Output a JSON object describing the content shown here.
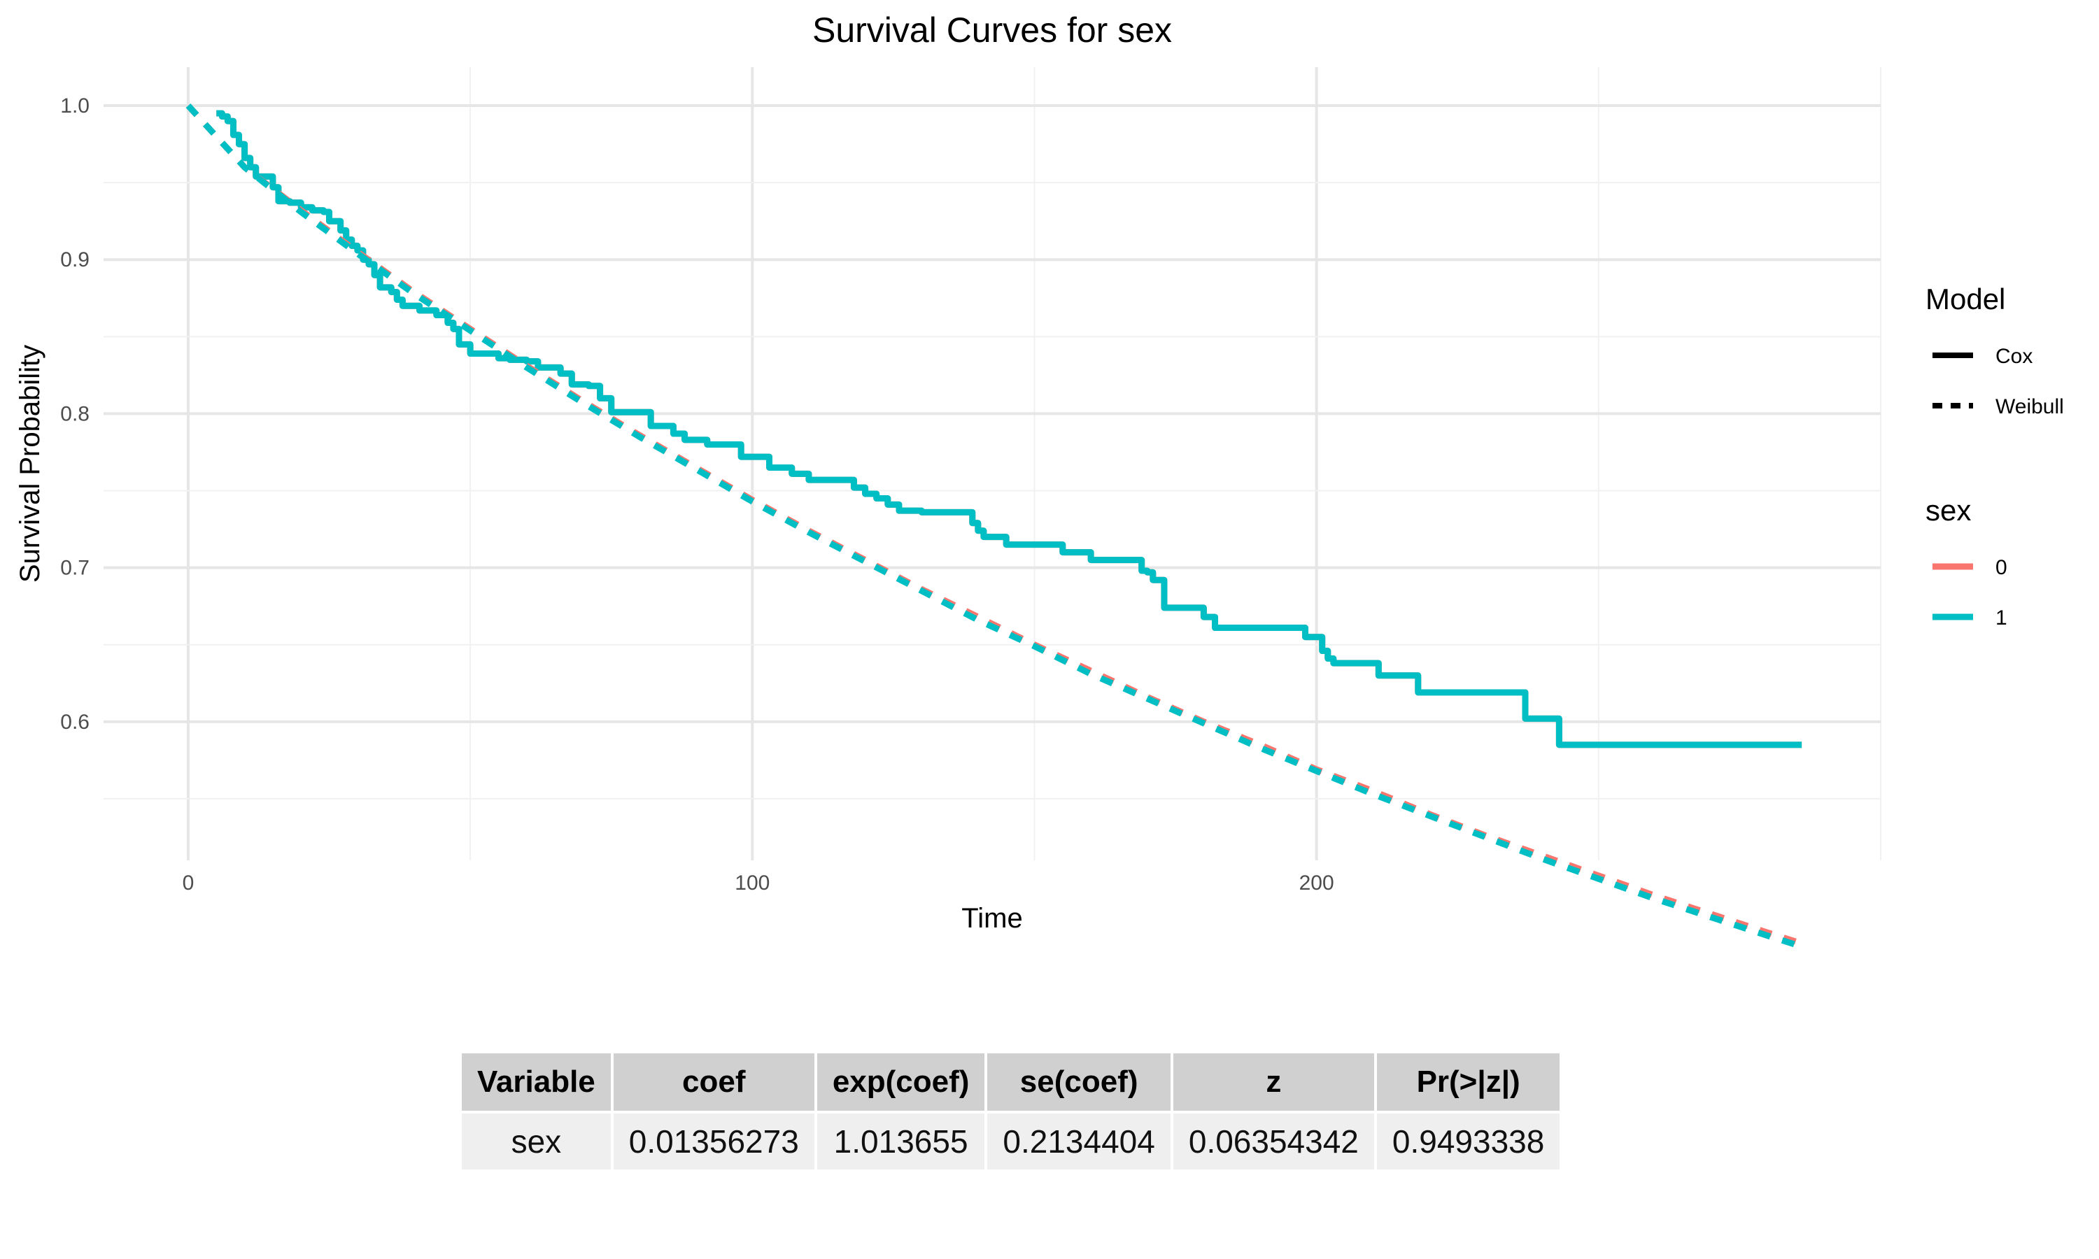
{
  "chart_data": {
    "type": "line",
    "title": "Survival Curves for sex",
    "xlabel": "Time",
    "ylabel": "Survival Probability",
    "xlim": [
      -15,
      300
    ],
    "ylim": [
      0.51,
      1.025
    ],
    "x_ticks": [
      0,
      100,
      200
    ],
    "y_ticks": [
      0.6,
      0.7,
      0.8,
      0.9,
      1.0
    ],
    "y_tick_labels": [
      "0.6",
      "0.7",
      "0.8",
      "0.9",
      "1.0"
    ],
    "grid": true,
    "legend_position": "right",
    "colors": {
      "sex_0": "#F8766D",
      "sex_1": "#00BFC4"
    },
    "legends": [
      {
        "title": "Model",
        "items": [
          {
            "label": "Cox",
            "style": "solid"
          },
          {
            "label": "Weibull",
            "style": "dashed"
          }
        ]
      },
      {
        "title": "sex",
        "items": [
          {
            "label": "0",
            "color": "#F8766D"
          },
          {
            "label": "1",
            "color": "#00BFC4"
          }
        ]
      }
    ],
    "series": [
      {
        "model": "Cox",
        "sex": "0",
        "color": "#F8766D",
        "style": "solid",
        "points": [
          [
            5,
            0.995
          ],
          [
            6,
            0.993
          ],
          [
            7,
            0.99
          ],
          [
            8,
            0.981
          ],
          [
            9,
            0.975
          ],
          [
            10,
            0.966
          ],
          [
            11,
            0.96
          ],
          [
            12,
            0.954
          ],
          [
            14,
            0.954
          ],
          [
            15,
            0.947
          ],
          [
            16,
            0.938
          ],
          [
            18,
            0.937
          ],
          [
            20,
            0.934
          ],
          [
            22,
            0.932
          ],
          [
            24,
            0.931
          ],
          [
            25,
            0.925
          ],
          [
            27,
            0.919
          ],
          [
            28,
            0.913
          ],
          [
            29,
            0.909
          ],
          [
            30,
            0.906
          ],
          [
            31,
            0.9
          ],
          [
            32,
            0.897
          ],
          [
            33,
            0.89
          ],
          [
            34,
            0.882
          ],
          [
            36,
            0.879
          ],
          [
            37,
            0.874
          ],
          [
            38,
            0.87
          ],
          [
            41,
            0.867
          ],
          [
            44,
            0.864
          ],
          [
            46,
            0.859
          ],
          [
            47,
            0.855
          ],
          [
            48,
            0.845
          ],
          [
            50,
            0.839
          ],
          [
            55,
            0.836
          ],
          [
            57,
            0.835
          ],
          [
            60,
            0.834
          ],
          [
            62,
            0.83
          ],
          [
            66,
            0.826
          ],
          [
            68,
            0.819
          ],
          [
            71,
            0.818
          ],
          [
            73,
            0.81
          ],
          [
            75,
            0.801
          ],
          [
            80,
            0.801
          ],
          [
            82,
            0.792
          ],
          [
            85,
            0.792
          ],
          [
            86,
            0.787
          ],
          [
            88,
            0.783
          ],
          [
            90,
            0.783
          ],
          [
            92,
            0.78
          ],
          [
            96,
            0.78
          ],
          [
            98,
            0.772
          ],
          [
            101,
            0.772
          ],
          [
            103,
            0.765
          ],
          [
            107,
            0.761
          ],
          [
            110,
            0.757
          ],
          [
            117,
            0.757
          ],
          [
            118,
            0.752
          ],
          [
            120,
            0.748
          ],
          [
            122,
            0.745
          ],
          [
            124,
            0.741
          ],
          [
            126,
            0.737
          ],
          [
            129,
            0.737
          ],
          [
            130,
            0.736
          ],
          [
            135,
            0.736
          ],
          [
            139,
            0.729
          ],
          [
            140,
            0.724
          ],
          [
            141,
            0.72
          ],
          [
            144,
            0.72
          ],
          [
            145,
            0.715
          ],
          [
            147,
            0.715
          ],
          [
            150,
            0.715
          ],
          [
            154,
            0.715
          ],
          [
            155,
            0.71
          ],
          [
            160,
            0.705
          ],
          [
            169,
            0.698
          ],
          [
            170,
            0.697
          ],
          [
            171,
            0.692
          ],
          [
            173,
            0.674
          ],
          [
            177,
            0.674
          ],
          [
            180,
            0.668
          ],
          [
            182,
            0.661
          ],
          [
            197,
            0.661
          ],
          [
            198,
            0.655
          ],
          [
            200,
            0.655
          ],
          [
            201,
            0.646
          ],
          [
            202,
            0.641
          ],
          [
            203,
            0.638
          ],
          [
            210,
            0.638
          ],
          [
            211,
            0.63
          ],
          [
            217,
            0.63
          ],
          [
            218,
            0.619
          ],
          [
            234,
            0.619
          ],
          [
            237,
            0.602
          ],
          [
            242,
            0.602
          ],
          [
            243,
            0.585
          ],
          [
            286,
            0.585
          ]
        ]
      },
      {
        "model": "Cox",
        "sex": "1",
        "color": "#00BFC4",
        "style": "solid",
        "points": [
          [
            5,
            0.995
          ],
          [
            6,
            0.993
          ],
          [
            7,
            0.99
          ],
          [
            8,
            0.981
          ],
          [
            9,
            0.975
          ],
          [
            10,
            0.966
          ],
          [
            11,
            0.96
          ],
          [
            12,
            0.954
          ],
          [
            14,
            0.954
          ],
          [
            15,
            0.947
          ],
          [
            16,
            0.938
          ],
          [
            18,
            0.937
          ],
          [
            20,
            0.934
          ],
          [
            22,
            0.932
          ],
          [
            24,
            0.931
          ],
          [
            25,
            0.925
          ],
          [
            27,
            0.919
          ],
          [
            28,
            0.913
          ],
          [
            29,
            0.909
          ],
          [
            30,
            0.906
          ],
          [
            31,
            0.9
          ],
          [
            32,
            0.897
          ],
          [
            33,
            0.89
          ],
          [
            34,
            0.882
          ],
          [
            36,
            0.879
          ],
          [
            37,
            0.874
          ],
          [
            38,
            0.87
          ],
          [
            41,
            0.867
          ],
          [
            44,
            0.864
          ],
          [
            46,
            0.859
          ],
          [
            47,
            0.855
          ],
          [
            48,
            0.845
          ],
          [
            50,
            0.839
          ],
          [
            55,
            0.836
          ],
          [
            57,
            0.835
          ],
          [
            60,
            0.834
          ],
          [
            62,
            0.83
          ],
          [
            66,
            0.826
          ],
          [
            68,
            0.819
          ],
          [
            71,
            0.818
          ],
          [
            73,
            0.81
          ],
          [
            75,
            0.801
          ],
          [
            80,
            0.801
          ],
          [
            82,
            0.792
          ],
          [
            85,
            0.792
          ],
          [
            86,
            0.787
          ],
          [
            88,
            0.783
          ],
          [
            90,
            0.783
          ],
          [
            92,
            0.78
          ],
          [
            96,
            0.78
          ],
          [
            98,
            0.772
          ],
          [
            101,
            0.772
          ],
          [
            103,
            0.765
          ],
          [
            107,
            0.761
          ],
          [
            110,
            0.757
          ],
          [
            117,
            0.757
          ],
          [
            118,
            0.752
          ],
          [
            120,
            0.748
          ],
          [
            122,
            0.745
          ],
          [
            124,
            0.741
          ],
          [
            126,
            0.737
          ],
          [
            129,
            0.737
          ],
          [
            130,
            0.736
          ],
          [
            135,
            0.736
          ],
          [
            139,
            0.729
          ],
          [
            140,
            0.724
          ],
          [
            141,
            0.72
          ],
          [
            144,
            0.72
          ],
          [
            145,
            0.715
          ],
          [
            147,
            0.715
          ],
          [
            150,
            0.715
          ],
          [
            154,
            0.715
          ],
          [
            155,
            0.71
          ],
          [
            160,
            0.705
          ],
          [
            169,
            0.698
          ],
          [
            170,
            0.697
          ],
          [
            171,
            0.692
          ],
          [
            173,
            0.674
          ],
          [
            177,
            0.674
          ],
          [
            180,
            0.668
          ],
          [
            182,
            0.661
          ],
          [
            197,
            0.661
          ],
          [
            198,
            0.655
          ],
          [
            200,
            0.655
          ],
          [
            201,
            0.646
          ],
          [
            202,
            0.641
          ],
          [
            203,
            0.638
          ],
          [
            210,
            0.638
          ],
          [
            211,
            0.63
          ],
          [
            217,
            0.63
          ],
          [
            218,
            0.619
          ],
          [
            234,
            0.619
          ],
          [
            237,
            0.602
          ],
          [
            242,
            0.602
          ],
          [
            243,
            0.585
          ],
          [
            286,
            0.585
          ]
        ]
      },
      {
        "model": "Weibull",
        "sex": "0",
        "color": "#F8766D",
        "style": "dashed",
        "points": [
          [
            0,
            1.0
          ],
          [
            10,
            0.96
          ],
          [
            20,
            0.932
          ],
          [
            30,
            0.905
          ],
          [
            40,
            0.879
          ],
          [
            50,
            0.855
          ],
          [
            60,
            0.831
          ],
          [
            70,
            0.808
          ],
          [
            80,
            0.786
          ],
          [
            90,
            0.765
          ],
          [
            100,
            0.744
          ],
          [
            110,
            0.724
          ],
          [
            120,
            0.705
          ],
          [
            130,
            0.686
          ],
          [
            140,
            0.668
          ],
          [
            150,
            0.65
          ],
          [
            160,
            0.633
          ],
          [
            170,
            0.616
          ],
          [
            180,
            0.6
          ],
          [
            190,
            0.585
          ],
          [
            200,
            0.569
          ],
          [
            210,
            0.555
          ],
          [
            220,
            0.54
          ],
          [
            230,
            0.526
          ],
          [
            240,
            0.513
          ],
          [
            250,
            0.5
          ],
          [
            260,
            0.487
          ],
          [
            270,
            0.475
          ],
          [
            280,
            0.463
          ],
          [
            286,
            0.456
          ]
        ]
      },
      {
        "model": "Weibull",
        "sex": "1",
        "color": "#00BFC4",
        "style": "dashed",
        "points": [
          [
            0,
            1.0
          ],
          [
            10,
            0.96
          ],
          [
            20,
            0.931
          ],
          [
            30,
            0.904
          ],
          [
            40,
            0.878
          ],
          [
            50,
            0.854
          ],
          [
            60,
            0.83
          ],
          [
            70,
            0.807
          ],
          [
            80,
            0.785
          ],
          [
            90,
            0.764
          ],
          [
            100,
            0.743
          ],
          [
            110,
            0.723
          ],
          [
            120,
            0.704
          ],
          [
            130,
            0.685
          ],
          [
            140,
            0.666
          ],
          [
            150,
            0.649
          ],
          [
            160,
            0.631
          ],
          [
            170,
            0.615
          ],
          [
            180,
            0.599
          ],
          [
            190,
            0.583
          ],
          [
            200,
            0.568
          ],
          [
            210,
            0.553
          ],
          [
            220,
            0.539
          ],
          [
            230,
            0.525
          ],
          [
            240,
            0.511
          ],
          [
            250,
            0.498
          ],
          [
            260,
            0.485
          ],
          [
            270,
            0.473
          ],
          [
            280,
            0.461
          ],
          [
            286,
            0.454
          ]
        ]
      }
    ]
  },
  "table": {
    "headers": [
      "Variable",
      "coef",
      "exp(coef)",
      "se(coef)",
      "z",
      "Pr(>|z|)"
    ],
    "rows": [
      [
        "sex",
        "0.01356273",
        "1.013655",
        "0.2134404",
        "0.06354342",
        "0.9493338"
      ]
    ]
  }
}
